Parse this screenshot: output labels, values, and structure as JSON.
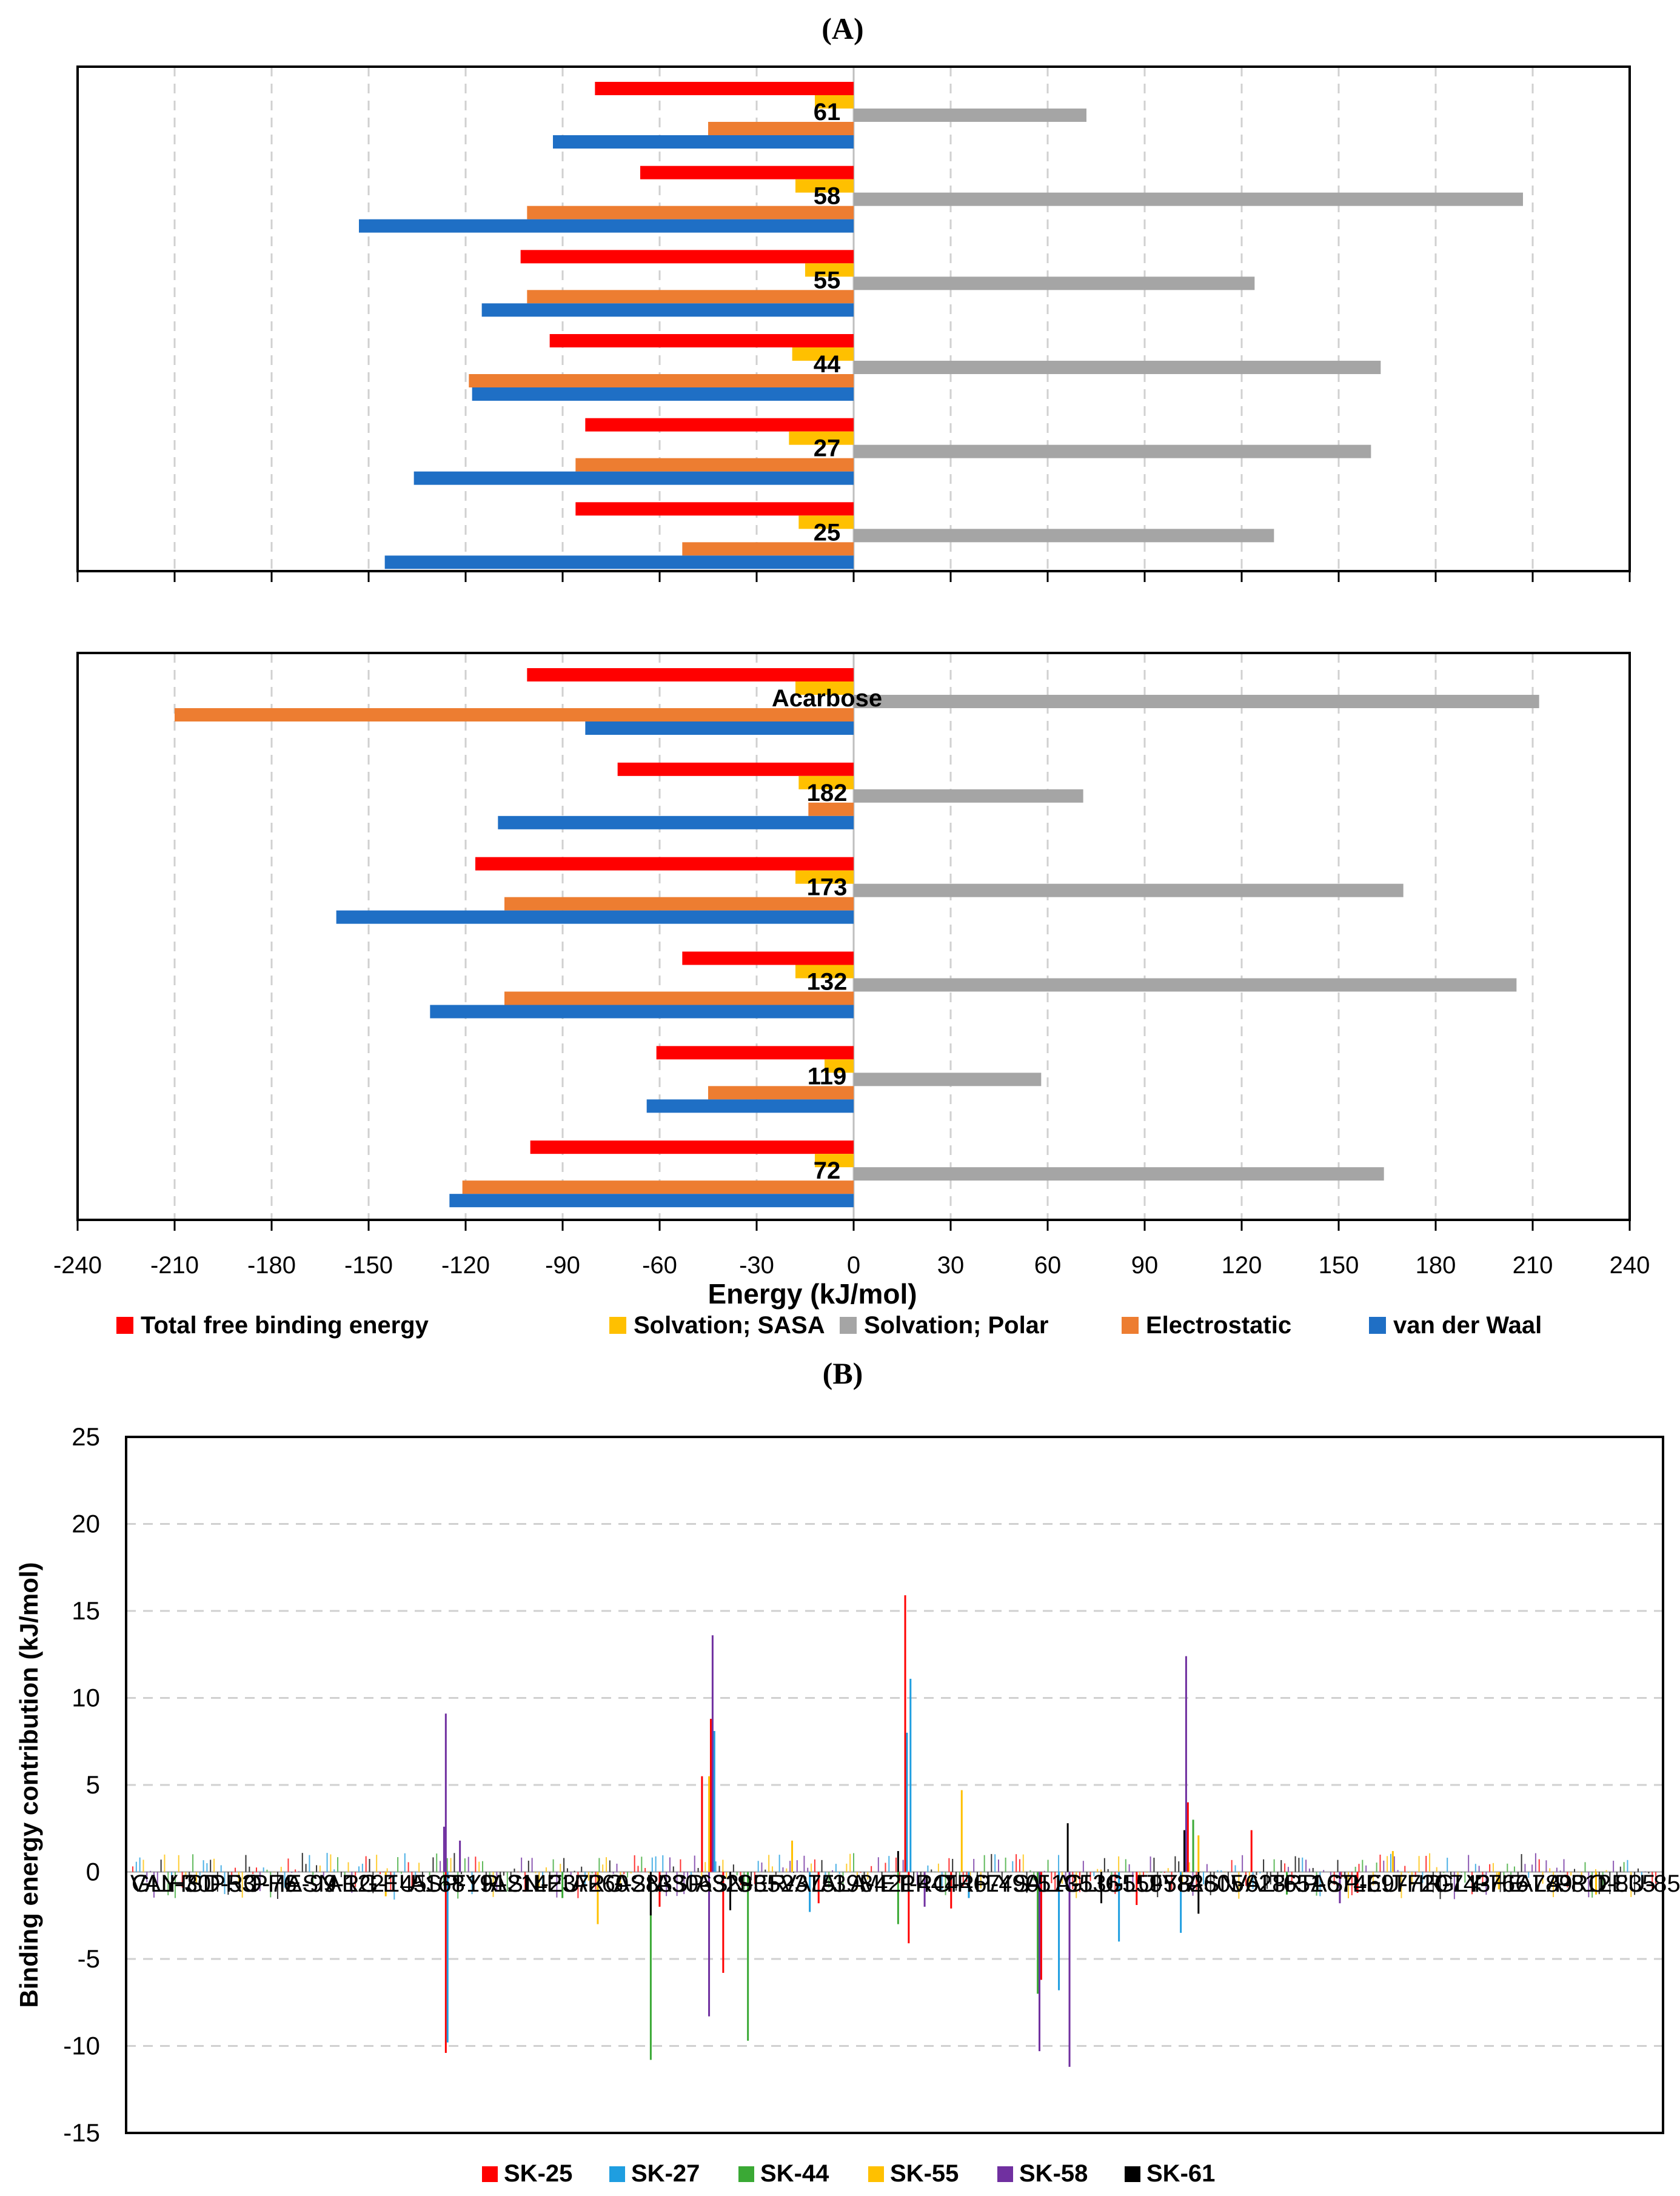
{
  "figure": {
    "panel_a_label": "(A)",
    "panel_b_label": "(B)"
  },
  "colors": {
    "total": "#ff0000",
    "sasa": "#ffc000",
    "polar": "#a5a5a5",
    "elec": "#ed7d31",
    "vdw": "#1f6fc5",
    "sk25": "#ff0000",
    "sk27": "#1f9ee0",
    "sk44": "#3aa935",
    "sk55": "#ffc000",
    "sk58": "#7030a0",
    "sk61": "#000000",
    "grid": "#d0d0d0"
  },
  "chart_data": [
    {
      "type": "bar",
      "orientation": "horizontal",
      "panel": "A-top",
      "categories": [
        "61",
        "58",
        "55",
        "44",
        "27",
        "25"
      ],
      "series": [
        {
          "name": "Total free binding energy",
          "values": [
            -80,
            -66,
            -103,
            -94,
            -83,
            -86
          ]
        },
        {
          "name": "Solvation; SASA",
          "values": [
            -12,
            -18,
            -15,
            -19,
            -20,
            -17
          ]
        },
        {
          "name": "Solvation; Polar",
          "values": [
            72,
            207,
            124,
            163,
            160,
            130
          ]
        },
        {
          "name": "Electrostatic",
          "values": [
            -45,
            -101,
            -101,
            -119,
            -86,
            -53
          ]
        },
        {
          "name": "van der Waal",
          "values": [
            -93,
            -153,
            -115,
            -118,
            -136,
            -145
          ]
        }
      ],
      "xlim": [
        -240,
        240
      ]
    },
    {
      "type": "bar",
      "orientation": "horizontal",
      "panel": "A-bottom",
      "categories": [
        "Acarbose",
        "182",
        "173",
        "132",
        "119",
        "72"
      ],
      "series": [
        {
          "name": "Total free binding energy",
          "values": [
            -101,
            -73,
            -117,
            -53,
            -61,
            -100
          ]
        },
        {
          "name": "Solvation; SASA",
          "values": [
            -18,
            -17,
            -18,
            -18,
            -9,
            -12
          ]
        },
        {
          "name": "Solvation; Polar",
          "values": [
            212,
            71,
            170,
            205,
            58,
            164
          ]
        },
        {
          "name": "Electrostatic",
          "values": [
            -210,
            -14,
            -108,
            -108,
            -45,
            -121
          ]
        },
        {
          "name": "van der Waal",
          "values": [
            -83,
            -110,
            -160,
            -131,
            -64,
            -125
          ]
        }
      ],
      "xlim": [
        -240,
        240
      ],
      "xticks": [
        "-240",
        "-210",
        "-180",
        "-150",
        "-120",
        "-90",
        "-60",
        "-30",
        "0",
        "30",
        "60",
        "90",
        "120",
        "150",
        "180",
        "210",
        "240"
      ],
      "xlabel": "Energy (kJ/mol)",
      "legend": [
        "Total free binding energy",
        "Solvation; SASA",
        "Solvation; Polar",
        "Electrostatic",
        "van der Waal"
      ]
    },
    {
      "type": "bar",
      "panel": "B",
      "title": "",
      "ylabel": "Binding energy contribution (kJ/mol)",
      "ylim": [
        -15,
        25
      ],
      "yticks": [
        "25",
        "20",
        "15",
        "10",
        "5",
        "0",
        "-5",
        "-10",
        "-15"
      ],
      "categories": [
        "VAL-7",
        "GLY-30",
        "HSD-53",
        "PRO-76",
        "PHE-99",
        "ASN-122",
        "ARG-145",
        "LEU-168",
        "ASP-191",
        "TYR-214",
        "ASN-237",
        "LEU-260",
        "ARG-283",
        "ASN-306",
        "ASP-329",
        "ASN-352",
        "SER-375",
        "VAL-398",
        "ALA-421",
        "MET-444",
        "PRO-467",
        "TRP-490",
        "LYS-513",
        "ALA-536",
        "GLU-559",
        "GLU-582",
        "TYR-605",
        "ASN-628",
        "VAL-651",
        "TRP-674",
        "ASP-697",
        "LEU-720",
        "THR-743",
        "GLY-766",
        "PHE-789",
        "ALA-812",
        "PRO-835",
        "LEU-858"
      ],
      "residue_range": [
        7,
        870
      ],
      "legend": [
        "SK-25",
        "SK-27",
        "SK-44",
        "SK-55",
        "SK-58",
        "SK-61"
      ],
      "series": [
        {
          "name": "SK-25",
          "points": [
            [
              184,
              -10.4
            ],
            [
              329,
              5.5
            ],
            [
              334,
              8.8
            ],
            [
              341,
              -5.8
            ],
            [
              444,
              15.9
            ],
            [
              446,
              -4.1
            ],
            [
              521,
              -6.2
            ],
            [
              604,
              4.0
            ],
            [
              640,
              2.4
            ],
            [
              305,
              -2.0
            ],
            [
              395,
              -1.8
            ],
            [
              470,
              -2.1
            ],
            [
              575,
              -1.9
            ],
            [
              700,
              -1.2
            ]
          ]
        },
        {
          "name": "SK-27",
          "points": [
            [
              185,
              -9.8
            ],
            [
              336,
              8.1
            ],
            [
              445,
              8.0
            ],
            [
              447,
              11.1
            ],
            [
              531,
              -6.8
            ],
            [
              565,
              -4.0
            ],
            [
              600,
              -3.5
            ],
            [
              390,
              -2.3
            ],
            [
              480,
              -1.5
            ]
          ]
        },
        {
          "name": "SK-44",
          "points": [
            [
              300,
              -10.8
            ],
            [
              355,
              -9.7
            ],
            [
              519,
              -7.0
            ],
            [
              607,
              3.0
            ],
            [
              440,
              -3.0
            ],
            [
              250,
              -1.5
            ],
            [
              660,
              -1.3
            ]
          ]
        },
        {
          "name": "SK-55",
          "points": [
            [
              333,
              5.5
            ],
            [
              476,
              4.7
            ],
            [
              610,
              2.1
            ],
            [
              270,
              -3.0
            ],
            [
              380,
              1.8
            ],
            [
              150,
              -1.4
            ],
            [
              720,
              1.2
            ],
            [
              780,
              -1.0
            ],
            [
              835,
              -1.3
            ]
          ]
        },
        {
          "name": "SK-58",
          "points": [
            [
              184,
              9.1
            ],
            [
              183,
              2.6
            ],
            [
              192,
              1.8
            ],
            [
              335,
              13.6
            ],
            [
              333,
              -8.3
            ],
            [
              520,
              -10.3
            ],
            [
              537,
              -11.2
            ],
            [
              603,
              12.4
            ],
            [
              455,
              -2.0
            ],
            [
              690,
              -1.8
            ]
          ]
        },
        {
          "name": "SK-61",
          "points": [
            [
              536,
              2.8
            ],
            [
              602,
              2.4
            ],
            [
              440,
              1.2
            ],
            [
              300,
              -2.5
            ],
            [
              345,
              -2.2
            ],
            [
              555,
              -1.8
            ],
            [
              610,
              -2.4
            ]
          ]
        }
      ]
    }
  ]
}
